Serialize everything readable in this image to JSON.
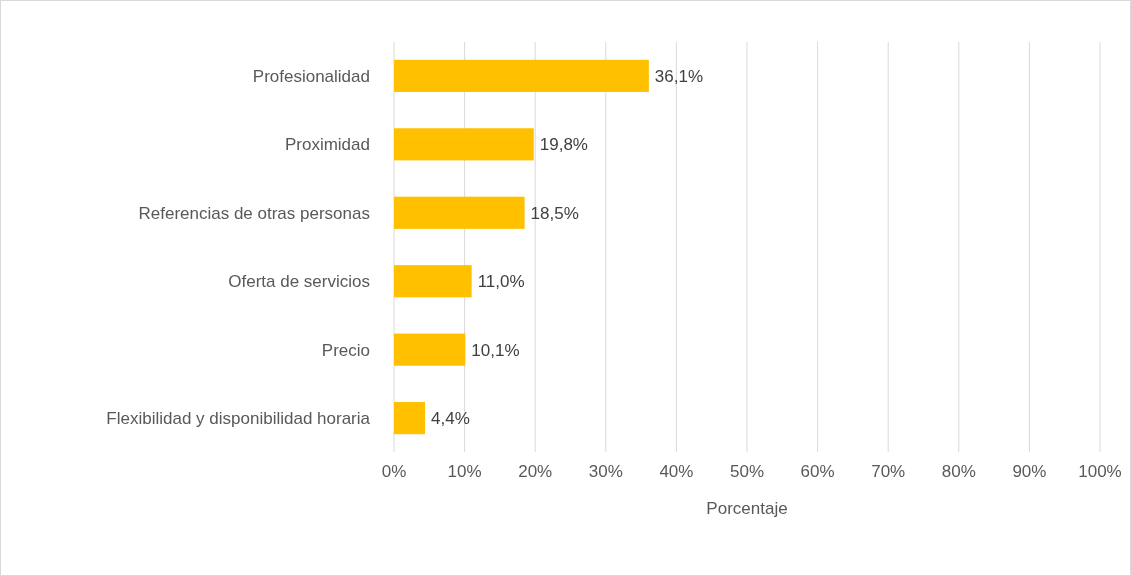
{
  "chart_data": {
    "type": "bar",
    "orientation": "horizontal",
    "xlabel": "Porcentaje",
    "categories": [
      "Profesionalidad",
      "Proximidad",
      "Referencias de otras personas",
      "Oferta de servicios",
      "Precio",
      "Flexibilidad y disponibilidad horaria"
    ],
    "values": [
      36.1,
      19.8,
      18.5,
      11.0,
      10.1,
      4.4
    ],
    "value_labels": [
      "36,1%",
      "19,8%",
      "18,5%",
      "11,0%",
      "10,1%",
      "4,4%"
    ],
    "color": "#ffc000",
    "xlim": [
      0,
      100
    ],
    "xticks": [
      {
        "value": 0,
        "label": "0%"
      },
      {
        "value": 10,
        "label": "10%"
      },
      {
        "value": 20,
        "label": "20%"
      },
      {
        "value": 30,
        "label": "30%"
      },
      {
        "value": 40,
        "label": "40%"
      },
      {
        "value": 50,
        "label": "50%"
      },
      {
        "value": 60,
        "label": "60%"
      },
      {
        "value": 70,
        "label": "70%"
      },
      {
        "value": 80,
        "label": "80%"
      },
      {
        "value": 90,
        "label": "90%"
      },
      {
        "value": 100,
        "label": "100%"
      }
    ],
    "grid": "x"
  }
}
